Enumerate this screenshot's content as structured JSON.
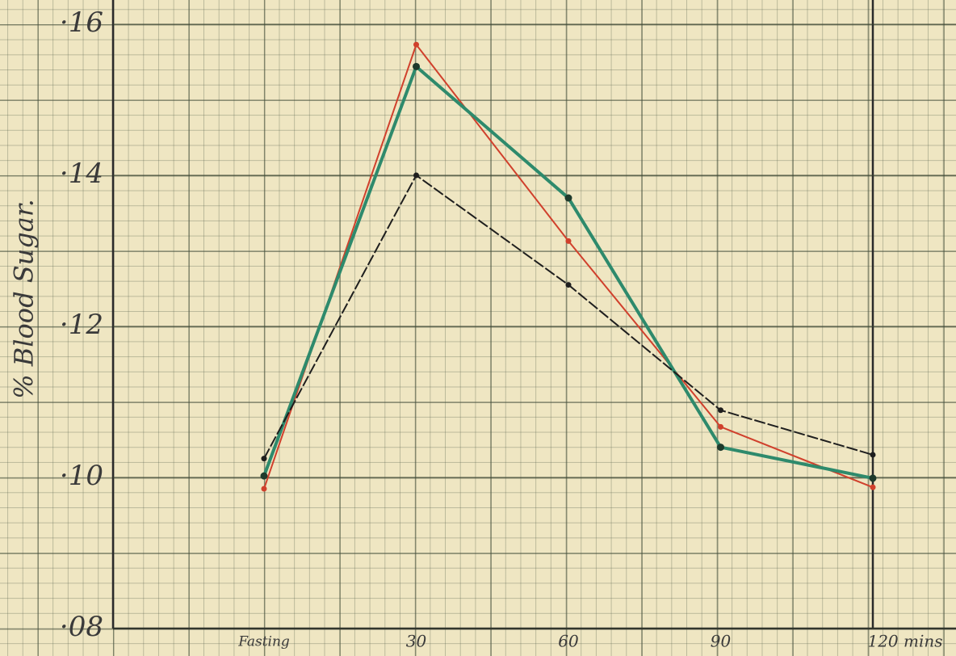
{
  "chart_data": {
    "type": "line",
    "y_label": "% Blood Sugar.",
    "categories": [
      "Fasting",
      "30",
      "60",
      "90",
      "120 mins"
    ],
    "series": [
      {
        "color": "#d0402c",
        "values": [
          0.0985,
          0.1573,
          0.1313,
          0.1067,
          0.0987
        ]
      },
      {
        "color": "#2e8a6c",
        "values": [
          0.1002,
          0.1544,
          0.137,
          0.104,
          0.0999
        ]
      },
      {
        "color": "#1e1e1e",
        "values": [
          0.1025,
          0.14,
          0.1255,
          0.1089,
          0.103
        ]
      }
    ],
    "ylim": [
      0.08,
      0.16
    ],
    "yticks": [
      {
        "value": 0.08,
        "label": "·08"
      },
      {
        "value": 0.1,
        "label": "·10"
      },
      {
        "value": 0.12,
        "label": "·12"
      },
      {
        "value": 0.14,
        "label": "·14"
      },
      {
        "value": 0.16,
        "label": "·16"
      }
    ],
    "grid": true
  }
}
